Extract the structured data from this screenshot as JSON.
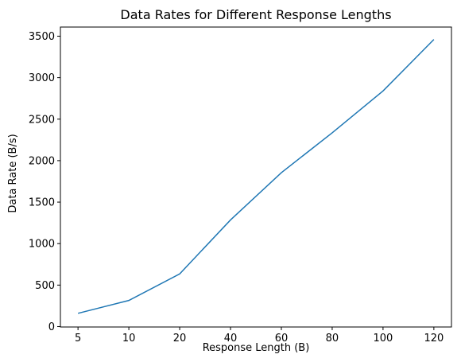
{
  "chart_data": {
    "type": "line",
    "title": "Data Rates for Different Response Lengths",
    "xlabel": "Response Length (B)",
    "ylabel": "Data Rate (B/s)",
    "categories": [
      "5",
      "10",
      "20",
      "40",
      "60",
      "80",
      "100",
      "120"
    ],
    "series": [
      {
        "values": [
          160,
          315,
          635,
          1285,
          1855,
          2335,
          2840,
          3460
        ],
        "color": "#1f77b4"
      }
    ],
    "yticks": [
      0,
      500,
      1000,
      1500,
      2000,
      2500,
      3000,
      3500
    ],
    "ylim": [
      -5,
      3610
    ],
    "grid": false,
    "legend": "none"
  }
}
